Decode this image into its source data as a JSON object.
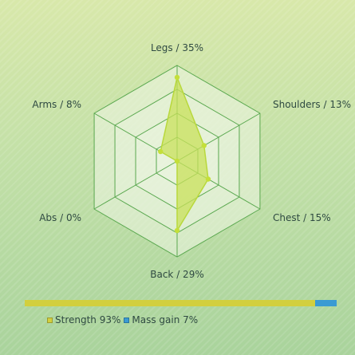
{
  "chart_data": {
    "type": "radar",
    "axes": [
      {
        "name": "Legs",
        "value": 35,
        "label": "Legs / 35%"
      },
      {
        "name": "Shoulders",
        "value": 13,
        "label": "Shoulders / 13%"
      },
      {
        "name": "Chest",
        "value": 15,
        "label": "Chest / 15%"
      },
      {
        "name": "Back",
        "value": 29,
        "label": "Back / 29%"
      },
      {
        "name": "Abs",
        "value": 0,
        "label": "Abs / 0%"
      },
      {
        "name": "Arms",
        "value": 8,
        "label": "Arms / 8%"
      }
    ],
    "range": [
      0,
      40
    ],
    "grid_levels": 4,
    "colors": {
      "grid_stroke": "#5aa84f",
      "grid_fill": "#eef5e4",
      "area_fill": "#c8e05a",
      "area_stroke": "#b8d83c",
      "point": "#c4df3a"
    },
    "legend": {
      "items": [
        {
          "label": "Strength 93%",
          "value": 93,
          "color": "#d2cf3e"
        },
        {
          "label": "Mass gain 7%",
          "value": 7,
          "color": "#3a9bd3"
        }
      ],
      "placement": "bottom"
    }
  }
}
